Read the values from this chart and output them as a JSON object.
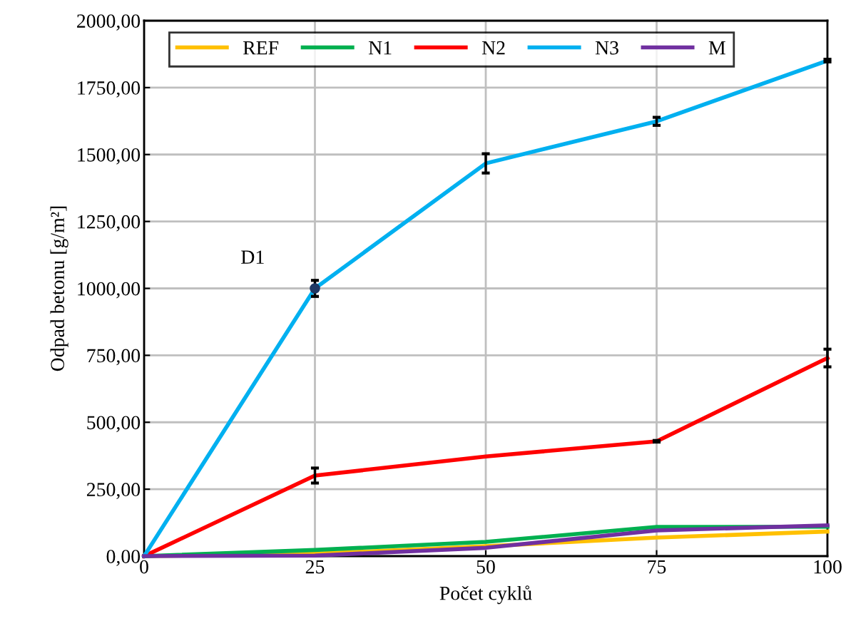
{
  "chart_data": {
    "type": "line",
    "xlabel": "Počet cyklů",
    "ylabel": "Odpad betonu [g/m²]",
    "x": [
      0,
      25,
      50,
      75,
      100
    ],
    "series": [
      {
        "name": "REF",
        "color": "#ffc000",
        "values": [
          0,
          9,
          37,
          69,
          92
        ]
      },
      {
        "name": "N1",
        "color": "#00b050",
        "values": [
          0,
          23,
          53,
          109,
          110
        ]
      },
      {
        "name": "N2",
        "color": "#ff0000",
        "values": [
          0,
          301,
          372,
          429,
          740
        ],
        "errors": [
          null,
          28,
          null,
          3,
          33
        ]
      },
      {
        "name": "N3",
        "color": "#00b0f0",
        "values": [
          0,
          1000,
          1467,
          1624,
          1851
        ],
        "errors": [
          null,
          30,
          36,
          15,
          5
        ]
      },
      {
        "name": "M",
        "color": "#7030a0",
        "values": [
          0,
          2,
          31,
          96,
          115
        ]
      },
      {
        "type": "scatter",
        "color": "#1f3864",
        "x": [
          25
        ],
        "values": [
          1000
        ],
        "marker": "circle"
      }
    ],
    "annotations": [
      {
        "text": "D1",
        "x": 25,
        "y": 1000
      }
    ],
    "xlim": [
      0,
      100
    ],
    "xticks": [
      0,
      25,
      50,
      75,
      100
    ],
    "ylim": [
      0,
      2000
    ],
    "yticks": [
      {
        "value": 0,
        "label": "0,00"
      },
      {
        "value": 250,
        "label": "250,00"
      },
      {
        "value": 500,
        "label": "500,00"
      },
      {
        "value": 750,
        "label": "750,00"
      },
      {
        "value": 1000,
        "label": "1000,00"
      },
      {
        "value": 1250,
        "label": "1250,00"
      },
      {
        "value": 1500,
        "label": "1500,00"
      },
      {
        "value": 1750,
        "label": "1750,00"
      },
      {
        "value": 2000,
        "label": "2000,00"
      }
    ],
    "grid": true,
    "legend": "top",
    "marker": "none",
    "line_style": "solid"
  }
}
